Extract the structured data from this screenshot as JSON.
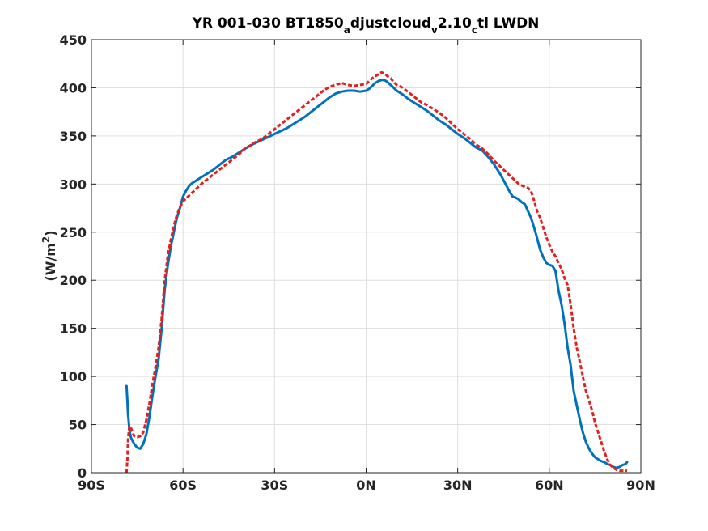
{
  "chart_data": {
    "type": "line",
    "title": {
      "main": "YR 001-030 BT1850",
      "sub1": "a",
      "mid1": "djustcloud",
      "sub2": "v",
      "mid2": "2.10",
      "sub3": "c",
      "end": "tl LWDN"
    },
    "ylabel": {
      "prefix": "(W/m",
      "sup": "2",
      "suffix": ")"
    },
    "xlim": [
      -90,
      90
    ],
    "ylim": [
      0,
      450
    ],
    "x_ticks": [
      {
        "value": -90,
        "label": "90S"
      },
      {
        "value": -60,
        "label": "60S"
      },
      {
        "value": -30,
        "label": "30S"
      },
      {
        "value": 0,
        "label": "0N"
      },
      {
        "value": 30,
        "label": "30N"
      },
      {
        "value": 60,
        "label": "60N"
      },
      {
        "value": 90,
        "label": "90N"
      }
    ],
    "y_ticks": [
      0,
      50,
      100,
      150,
      200,
      250,
      300,
      350,
      400,
      450
    ],
    "grid": true,
    "series": [
      {
        "color": "#0072bd",
        "style": "solid",
        "x": [
          -78.5,
          -78.3,
          -78,
          -77.5,
          -77,
          -76,
          -75,
          -74,
          -73,
          -72,
          -71,
          -70,
          -69,
          -68,
          -67,
          -66,
          -65,
          -64,
          -63,
          -62,
          -61,
          -60,
          -59,
          -58,
          -57,
          -56,
          -55,
          -54,
          -52,
          -50,
          -48,
          -46,
          -44,
          -42,
          -40,
          -38,
          -36,
          -34,
          -32,
          -30,
          -28,
          -26,
          -24,
          -22,
          -20,
          -18,
          -16,
          -14,
          -12,
          -10,
          -8,
          -6,
          -4,
          -2,
          0,
          1,
          2,
          3,
          4,
          5,
          6,
          7,
          8,
          9,
          10,
          12,
          14,
          16,
          18,
          20,
          22,
          24,
          26,
          28,
          30,
          32,
          34,
          36,
          38,
          40,
          42,
          44,
          46,
          47,
          48,
          49,
          50,
          51,
          52,
          53,
          54,
          55,
          56,
          57,
          58,
          59,
          60,
          61,
          62,
          63,
          64,
          65,
          66,
          67,
          68,
          69,
          70,
          71,
          72,
          73,
          74,
          75,
          76,
          77,
          78,
          79,
          80,
          81,
          82,
          83,
          84,
          85,
          85.5
        ],
        "y": [
          90,
          80,
          60,
          43,
          36,
          30,
          26,
          25,
          30,
          40,
          58,
          80,
          100,
          118,
          150,
          190,
          215,
          235,
          250,
          265,
          275,
          287,
          293,
          298,
          301,
          303,
          305,
          307,
          311,
          315,
          320,
          325,
          328,
          332,
          336,
          340,
          343,
          346,
          349,
          352,
          355,
          358,
          362,
          366,
          370,
          375,
          380,
          385,
          390,
          394,
          396,
          397,
          397,
          396,
          397,
          399,
          402,
          405,
          407,
          408,
          408,
          406,
          403,
          400,
          397,
          393,
          388,
          384,
          380,
          376,
          371,
          366,
          362,
          357,
          352,
          348,
          343,
          338,
          335,
          328,
          320,
          310,
          298,
          292,
          287,
          286,
          284,
          281,
          279,
          272,
          265,
          255,
          244,
          232,
          224,
          218,
          216,
          215,
          210,
          190,
          175,
          155,
          130,
          112,
          85,
          70,
          55,
          42,
          32,
          25,
          20,
          16,
          14,
          12,
          11,
          9,
          8,
          6,
          5,
          6,
          8,
          9,
          11
        ]
      },
      {
        "color": "#e51e1e",
        "style": "dashed",
        "x": [
          -78.5,
          -78.2,
          -78,
          -77.6,
          -77.3,
          -77,
          -76.5,
          -76,
          -75,
          -74,
          -73,
          -72,
          -71,
          -70,
          -69,
          -68,
          -67,
          -66,
          -65,
          -64,
          -63,
          -62,
          -61,
          -60,
          -59,
          -58,
          -57,
          -56,
          -55,
          -54,
          -52,
          -50,
          -48,
          -46,
          -44,
          -42,
          -40,
          -38,
          -36,
          -34,
          -32,
          -30,
          -28,
          -26,
          -24,
          -22,
          -20,
          -18,
          -16,
          -14,
          -12,
          -10,
          -8,
          -6,
          -4,
          -2,
          0,
          1,
          2,
          3,
          4,
          5,
          6,
          7,
          8,
          9,
          10,
          12,
          14,
          16,
          18,
          20,
          22,
          24,
          26,
          28,
          30,
          32,
          34,
          36,
          38,
          40,
          42,
          44,
          46,
          48,
          50,
          52,
          53,
          54,
          55,
          56,
          57,
          58,
          59,
          60,
          61,
          62,
          63,
          64,
          65,
          66,
          67,
          68,
          69,
          70,
          71,
          72,
          73,
          74,
          75,
          76,
          77,
          78,
          79,
          80,
          81,
          82,
          83,
          84,
          85,
          85.5
        ],
        "y": [
          0,
          15,
          35,
          48,
          48,
          46,
          42,
          38,
          37,
          38,
          42,
          55,
          72,
          92,
          110,
          130,
          160,
          200,
          225,
          242,
          256,
          268,
          276,
          282,
          285,
          288,
          291,
          294,
          297,
          300,
          305,
          310,
          315,
          320,
          325,
          330,
          336,
          340,
          344,
          347,
          352,
          357,
          362,
          367,
          372,
          377,
          382,
          387,
          392,
          397,
          401,
          403,
          405,
          403,
          402,
          403,
          404,
          407,
          410,
          412,
          414,
          416,
          415,
          412,
          410,
          406,
          403,
          400,
          395,
          390,
          385,
          382,
          378,
          374,
          369,
          363,
          357,
          352,
          347,
          341,
          337,
          331,
          324,
          318,
          312,
          306,
          300,
          297,
          296,
          293,
          283,
          272,
          265,
          255,
          245,
          237,
          230,
          225,
          218,
          212,
          202,
          195,
          175,
          150,
          130,
          115,
          100,
          85,
          75,
          65,
          52,
          42,
          32,
          22,
          14,
          8,
          5,
          3,
          2,
          2,
          2,
          2
        ]
      }
    ]
  }
}
